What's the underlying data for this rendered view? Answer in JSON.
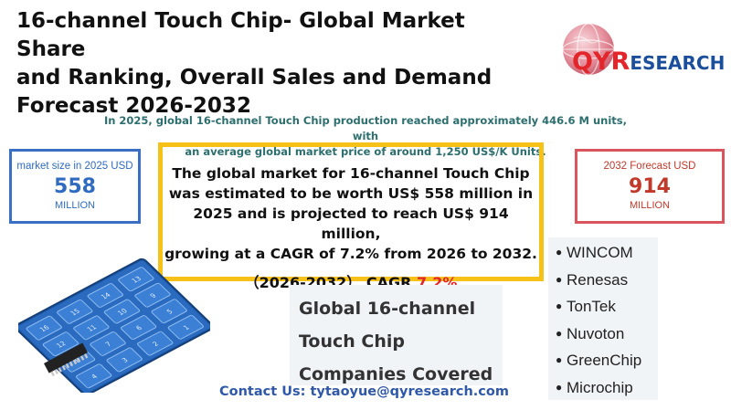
{
  "title": {
    "line1": "16-channel Touch Chip- Global Market Share",
    "line2": "and Ranking, Overall Sales and Demand",
    "line3": "Forecast 2026-2032"
  },
  "logo": {
    "brand_qy": "QY",
    "brand_r": "R",
    "brand_rest": "ESEARCH",
    "icon": "globe-icon"
  },
  "intro": {
    "line1": "In 2025, global 16-channel Touch Chip production reached approximately 446.6 M units, with",
    "line2": "an average global market price of around 1,250 US$/K Units."
  },
  "market_size_2025": {
    "label": "market size in 2025 USD",
    "value": "558",
    "unit": "MILLION"
  },
  "forecast_2032": {
    "label": "2032 Forecast  USD",
    "value": "914",
    "unit": "MILLION"
  },
  "summary": {
    "line1": "The global market for 16-channel Touch Chip",
    "line2": "was estimated to be worth US$ 558 million in",
    "line3": "2025 and is projected to reach US$ 914 million,",
    "line4": "growing at a CAGR of 7.2% from 2026 to 2032.",
    "cagr_period": "（2026-2032）",
    "cagr_label": "CAGR",
    "cagr_value": "7.2%"
  },
  "companies_heading": {
    "line1": "Global 16-channel",
    "line2": "Touch Chip",
    "line3": "Companies Covered"
  },
  "companies": [
    "WINCOM",
    "Renesas",
    "TonTek",
    "Nuvoton",
    "GreenChip",
    "Microchip"
  ],
  "chip_keys": [
    "16",
    "15",
    "14",
    "13",
    "12",
    "11",
    "10",
    "9",
    "8",
    "7",
    "6",
    "5",
    "4",
    "3",
    "2",
    "1"
  ],
  "contact": "Contact Us: tytaoyue@qyresearch.com",
  "colors": {
    "blue_box": "#3a6fc4",
    "red_box": "#d9545c",
    "yellow_box": "#f6c21a",
    "accent_red": "#e3262b",
    "contact_blue": "#2f58a8"
  }
}
